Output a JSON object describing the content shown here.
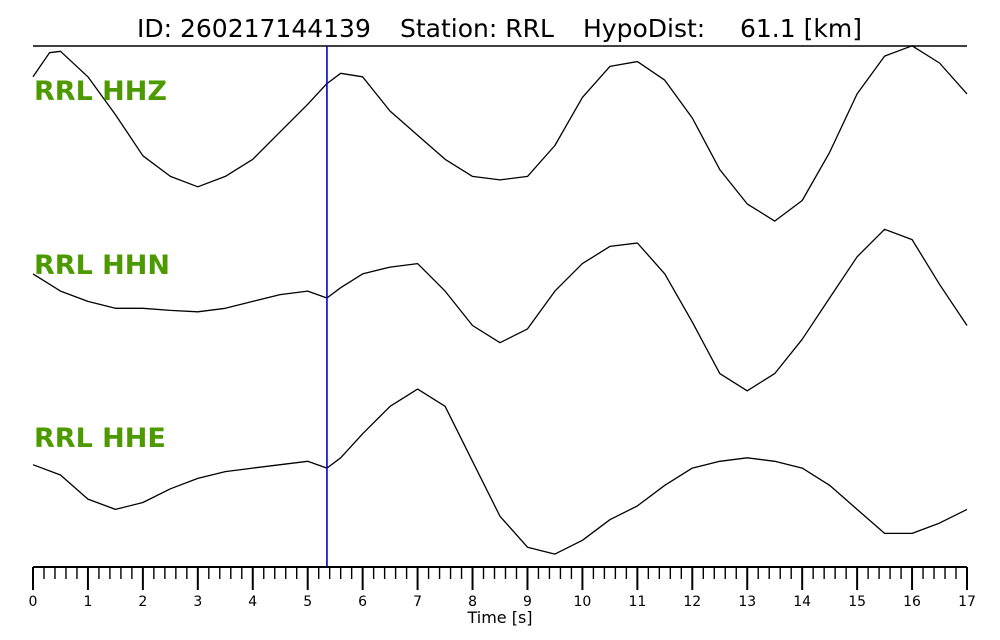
{
  "header": {
    "id_text": "ID: 260217144139",
    "station_text": "Station: RRL",
    "hypodist_label": "HypoDist:",
    "hypodist_value": "61.1 [km]"
  },
  "colors": {
    "trace": "#000000",
    "channel_label": "#4c9a00",
    "pick_line": "#0000cc",
    "background": "#ffffff"
  },
  "chart_data": {
    "type": "line",
    "title": "ID: 260217144139   Station: RRL   HypoDist:    61.1 [km]",
    "xlabel": "Time [s]",
    "ylabel": "",
    "xlim": [
      0,
      17
    ],
    "x_major_ticks": [
      0,
      1,
      2,
      3,
      4,
      5,
      6,
      7,
      8,
      9,
      10,
      11,
      12,
      13,
      14,
      15,
      16,
      17
    ],
    "x_tick_labels": [
      "0",
      "1",
      "2",
      "3",
      "4",
      "5",
      "6",
      "7",
      "8",
      "9",
      "10",
      "11",
      "12",
      "13",
      "14",
      "15",
      "16",
      "17"
    ],
    "x_minor_tick_step": 0.2,
    "grid": false,
    "pick_time": 5.35,
    "series": [
      {
        "name": "RRL HHZ",
        "x": [
          0,
          0.3,
          0.5,
          1.0,
          1.5,
          2.0,
          2.5,
          3.0,
          3.5,
          4.0,
          4.5,
          5.0,
          5.35,
          5.6,
          6.0,
          6.5,
          7.0,
          7.5,
          8.0,
          8.5,
          9.0,
          9.5,
          10.0,
          10.5,
          11.0,
          11.5,
          12.0,
          12.5,
          13.0,
          13.5,
          14.0,
          14.5,
          15.0,
          15.5,
          16.0,
          16.5,
          17.0
        ],
        "y": [
          0.6,
          0.95,
          0.97,
          0.6,
          0.05,
          -0.55,
          -0.85,
          -1.0,
          -0.85,
          -0.6,
          -0.2,
          0.2,
          0.5,
          0.65,
          0.6,
          0.1,
          -0.25,
          -0.6,
          -0.85,
          -0.9,
          -0.85,
          -0.4,
          0.3,
          0.75,
          0.82,
          0.55,
          0.0,
          -0.75,
          -1.25,
          -1.5,
          -1.2,
          -0.5,
          0.35,
          0.9,
          1.05,
          0.8,
          0.35
        ],
        "ylim": [
          -1.6,
          1.6
        ]
      },
      {
        "name": "RRL HHN",
        "x": [
          0,
          0.5,
          1.0,
          1.5,
          2.0,
          2.5,
          3.0,
          3.5,
          4.0,
          4.5,
          5.0,
          5.35,
          5.6,
          6.0,
          6.5,
          7.0,
          7.5,
          8.0,
          8.5,
          9.0,
          9.5,
          10.0,
          10.5,
          11.0,
          11.5,
          12.0,
          12.5,
          13.0,
          13.5,
          14.0,
          14.5,
          15.0,
          15.5,
          16.0,
          16.5,
          17.0
        ],
        "y": [
          0.35,
          0.1,
          -0.05,
          -0.15,
          -0.15,
          -0.18,
          -0.2,
          -0.15,
          -0.05,
          0.05,
          0.1,
          0.0,
          0.15,
          0.35,
          0.45,
          0.5,
          0.1,
          -0.4,
          -0.65,
          -0.45,
          0.1,
          0.5,
          0.75,
          0.8,
          0.35,
          -0.35,
          -1.1,
          -1.35,
          -1.1,
          -0.6,
          0.0,
          0.6,
          1.0,
          0.85,
          0.2,
          -0.4
        ],
        "ylim": [
          -1.6,
          1.6
        ]
      },
      {
        "name": "RRL HHE",
        "x": [
          0,
          0.5,
          1.0,
          1.5,
          2.0,
          2.5,
          3.0,
          3.5,
          4.0,
          4.5,
          5.0,
          5.35,
          5.6,
          6.0,
          6.5,
          7.0,
          7.5,
          8.0,
          8.5,
          9.0,
          9.5,
          10.0,
          10.5,
          11.0,
          11.5,
          12.0,
          12.5,
          13.0,
          13.5,
          14.0,
          14.5,
          15.0,
          15.5,
          16.0,
          16.5,
          17.0
        ],
        "y": [
          0.15,
          0.0,
          -0.35,
          -0.5,
          -0.4,
          -0.2,
          -0.05,
          0.05,
          0.1,
          0.15,
          0.2,
          0.1,
          0.25,
          0.6,
          1.0,
          1.25,
          1.0,
          0.2,
          -0.6,
          -1.05,
          -1.15,
          -0.95,
          -0.65,
          -0.45,
          -0.15,
          0.1,
          0.2,
          0.25,
          0.2,
          0.1,
          -0.15,
          -0.5,
          -0.85,
          -0.85,
          -0.7,
          -0.5
        ],
        "ylim": [
          -1.6,
          1.6
        ]
      }
    ]
  }
}
